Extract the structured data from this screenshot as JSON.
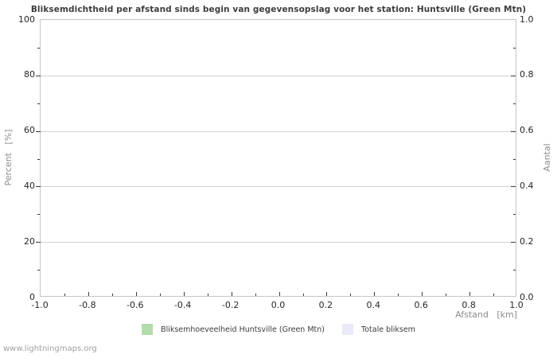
{
  "chart_data": {
    "type": "line",
    "title": "Bliksemdichtheid per afstand sinds begin van gegevensopslag voor het station: Huntsville (Green Mtn)",
    "xlabel": "Afstand   [km]",
    "ylabel_left": "Percent   [%]",
    "ylabel_right": "Aantal",
    "x_axis": {
      "min": -1.0,
      "max": 1.0,
      "major_step": 0.2,
      "minor_step": 0.1,
      "tick_labels": [
        "-1.0",
        "-0.8",
        "-0.6",
        "-0.4",
        "-0.2",
        "0.0",
        "0.2",
        "0.4",
        "0.6",
        "0.8",
        "1.0"
      ]
    },
    "y_axis_left": {
      "min": 0,
      "max": 100,
      "major_step": 20,
      "minor_step": 10,
      "tick_labels": [
        "0",
        "20",
        "40",
        "60",
        "80",
        "100"
      ]
    },
    "y_axis_right": {
      "min": 0.0,
      "max": 1.0,
      "major_step": 0.2,
      "minor_step": 0.1,
      "tick_labels": [
        "0.0",
        "0.2",
        "0.4",
        "0.6",
        "0.8",
        "1.0"
      ]
    },
    "grid": "horizontal-major-only",
    "legend_position": "bottom-center",
    "series": [
      {
        "name": "Bliksemhoeveelheid Huntsville (Green Mtn)",
        "color": "#b2dcab",
        "values": []
      },
      {
        "name": "Totale bliksem",
        "color": "#e9e9f8",
        "values": []
      }
    ]
  },
  "footer": {
    "watermark": "www.lightningmaps.org"
  },
  "colors": {
    "background": "#ffffff",
    "border": "#c6c6c6",
    "grid": "#d2d2d2",
    "tick": "#3a3a3a",
    "title_text": "#3c3c3c",
    "tick_label_text": "#262626",
    "axis_label_text": "#8c8c8c",
    "legend_text": "#3c3c3c",
    "watermark_text": "#a0a0a0"
  }
}
